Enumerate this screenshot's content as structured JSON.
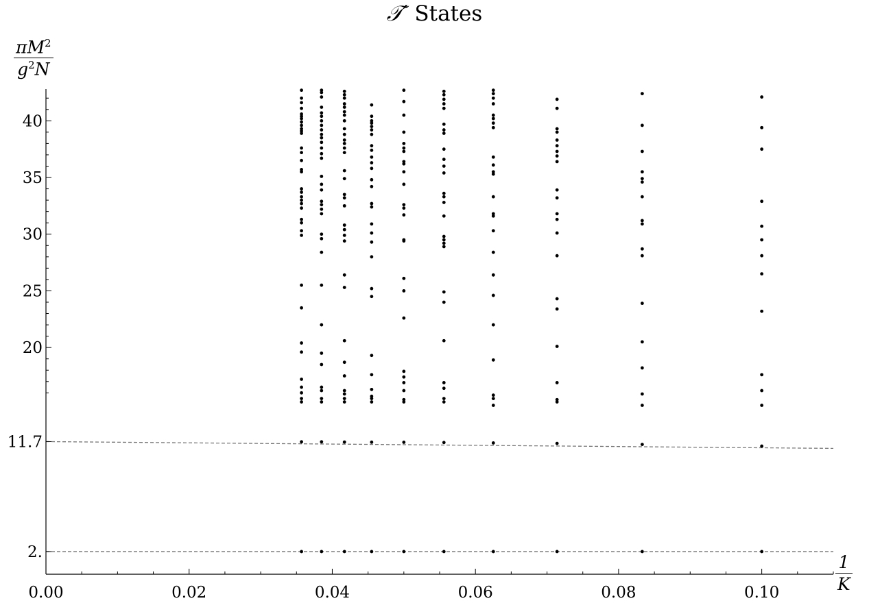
{
  "title": {
    "prefix": "𝒯′",
    "text": " States"
  },
  "chart_data": {
    "type": "scatter",
    "title": "𝒯′ States",
    "xlabel": {
      "numerator": "1",
      "denominator": "K"
    },
    "ylabel": {
      "pi": "π",
      "M": "M",
      "exp": "2",
      "g": "g",
      "N": "N"
    },
    "xlim": [
      0,
      0.11
    ],
    "ylim": [
      0,
      42.8
    ],
    "x_ticks": [
      {
        "value": 0.0,
        "label": "0.00"
      },
      {
        "value": 0.02,
        "label": "0.02"
      },
      {
        "value": 0.04,
        "label": "0.04"
      },
      {
        "value": 0.06,
        "label": "0.06"
      },
      {
        "value": 0.08,
        "label": "0.08"
      },
      {
        "value": 0.1,
        "label": "0.10"
      }
    ],
    "y_ticks": [
      {
        "value": 2.0,
        "label": "2."
      },
      {
        "value": 11.7,
        "label": "11.7"
      },
      {
        "value": 20,
        "label": "20"
      },
      {
        "value": 25,
        "label": "25"
      },
      {
        "value": 30,
        "label": "30"
      },
      {
        "value": 35,
        "label": "35"
      },
      {
        "value": 40,
        "label": "40"
      }
    ],
    "reference_lines": [
      {
        "name": "2.",
        "x": [
          0,
          0.11
        ],
        "y": [
          2.0,
          2.0
        ],
        "style": "dashed",
        "color": "#777777"
      },
      {
        "name": "11.7",
        "x": [
          0,
          0.11
        ],
        "y": [
          11.7,
          11.1
        ],
        "style": "dashed",
        "color": "#777777"
      }
    ],
    "series": [
      {
        "x": 0.0357,
        "y": [
          2.0,
          11.68,
          15.2,
          15.5,
          16.0,
          16.5,
          17.2,
          19.6,
          20.4,
          23.5,
          25.5,
          29.9,
          30.3,
          31.0,
          31.3,
          32.3,
          32.7,
          33.0,
          33.3,
          33.7,
          34.0,
          35.5,
          35.7,
          36.5,
          37.2,
          37.6,
          38.9,
          39.1,
          39.3,
          39.6,
          39.9,
          40.2,
          40.4,
          40.6,
          41.1,
          41.6,
          42.0,
          42.7
        ]
      },
      {
        "x": 0.0385,
        "y": [
          2.0,
          11.68,
          15.2,
          15.5,
          16.2,
          16.5,
          18.5,
          19.5,
          22.0,
          25.5,
          28.4,
          29.6,
          30.0,
          31.8,
          32.2,
          32.6,
          32.9,
          33.9,
          34.4,
          35.1,
          36.7,
          37.1,
          37.6,
          38.1,
          38.5,
          38.8,
          39.2,
          39.6,
          40.0,
          40.4,
          40.7,
          41.2,
          42.1,
          42.5,
          42.7
        ]
      },
      {
        "x": 0.0417,
        "y": [
          2.0,
          11.66,
          15.2,
          15.5,
          15.9,
          16.2,
          17.5,
          18.7,
          20.6,
          25.3,
          26.4,
          29.4,
          29.9,
          30.4,
          30.8,
          32.5,
          33.2,
          33.5,
          34.9,
          35.6,
          37.2,
          37.6,
          38.0,
          38.3,
          38.8,
          39.3,
          40.0,
          40.5,
          40.8,
          41.2,
          41.5,
          42.0,
          42.3,
          42.6
        ]
      },
      {
        "x": 0.0455,
        "y": [
          2.0,
          11.65,
          15.2,
          15.5,
          15.7,
          16.3,
          17.6,
          19.3,
          24.5,
          25.2,
          28.0,
          29.3,
          30.1,
          30.9,
          32.4,
          32.7,
          34.2,
          34.8,
          35.8,
          36.3,
          36.8,
          37.4,
          37.8,
          38.8,
          39.2,
          39.5,
          39.8,
          40.0,
          40.4,
          41.4
        ]
      },
      {
        "x": 0.05,
        "y": [
          2.0,
          11.64,
          15.2,
          15.4,
          16.2,
          16.9,
          17.4,
          17.9,
          22.6,
          25.0,
          26.1,
          29.4,
          29.5,
          31.7,
          32.3,
          32.6,
          34.4,
          35.5,
          36.2,
          36.4,
          37.3,
          37.6,
          38.0,
          39.0,
          40.5,
          41.7,
          42.7
        ]
      },
      {
        "x": 0.0556,
        "y": [
          2.0,
          11.62,
          15.2,
          15.5,
          16.4,
          16.9,
          20.6,
          24.0,
          24.9,
          28.9,
          29.2,
          29.5,
          29.8,
          31.6,
          32.8,
          33.3,
          33.6,
          35.4,
          36.0,
          36.6,
          37.5,
          38.9,
          39.2,
          39.7,
          41.1,
          41.5,
          41.9,
          42.3,
          42.6
        ]
      },
      {
        "x": 0.0625,
        "y": [
          2.0,
          11.58,
          14.9,
          15.5,
          15.8,
          18.9,
          22.0,
          24.6,
          26.4,
          28.4,
          30.3,
          31.6,
          31.8,
          33.3,
          35.3,
          35.5,
          36.1,
          36.8,
          39.4,
          39.8,
          40.2,
          40.5,
          41.5,
          42.0,
          42.4,
          42.7
        ]
      },
      {
        "x": 0.0714,
        "y": [
          2.0,
          11.54,
          15.2,
          15.4,
          16.9,
          20.1,
          23.4,
          24.3,
          28.1,
          30.1,
          31.3,
          31.8,
          33.2,
          33.9,
          36.4,
          36.9,
          37.3,
          37.8,
          38.3,
          39.0,
          39.3,
          41.1,
          41.9
        ]
      },
      {
        "x": 0.0833,
        "y": [
          2.0,
          11.45,
          14.9,
          15.9,
          18.2,
          20.5,
          23.9,
          28.1,
          28.7,
          30.9,
          31.2,
          33.3,
          34.6,
          34.9,
          35.5,
          37.3,
          39.6,
          42.4
        ]
      },
      {
        "x": 0.1,
        "y": [
          2.0,
          11.3,
          14.9,
          16.2,
          17.6,
          23.2,
          26.5,
          28.1,
          29.5,
          30.7,
          32.9,
          37.5,
          39.4,
          42.1
        ]
      }
    ]
  }
}
